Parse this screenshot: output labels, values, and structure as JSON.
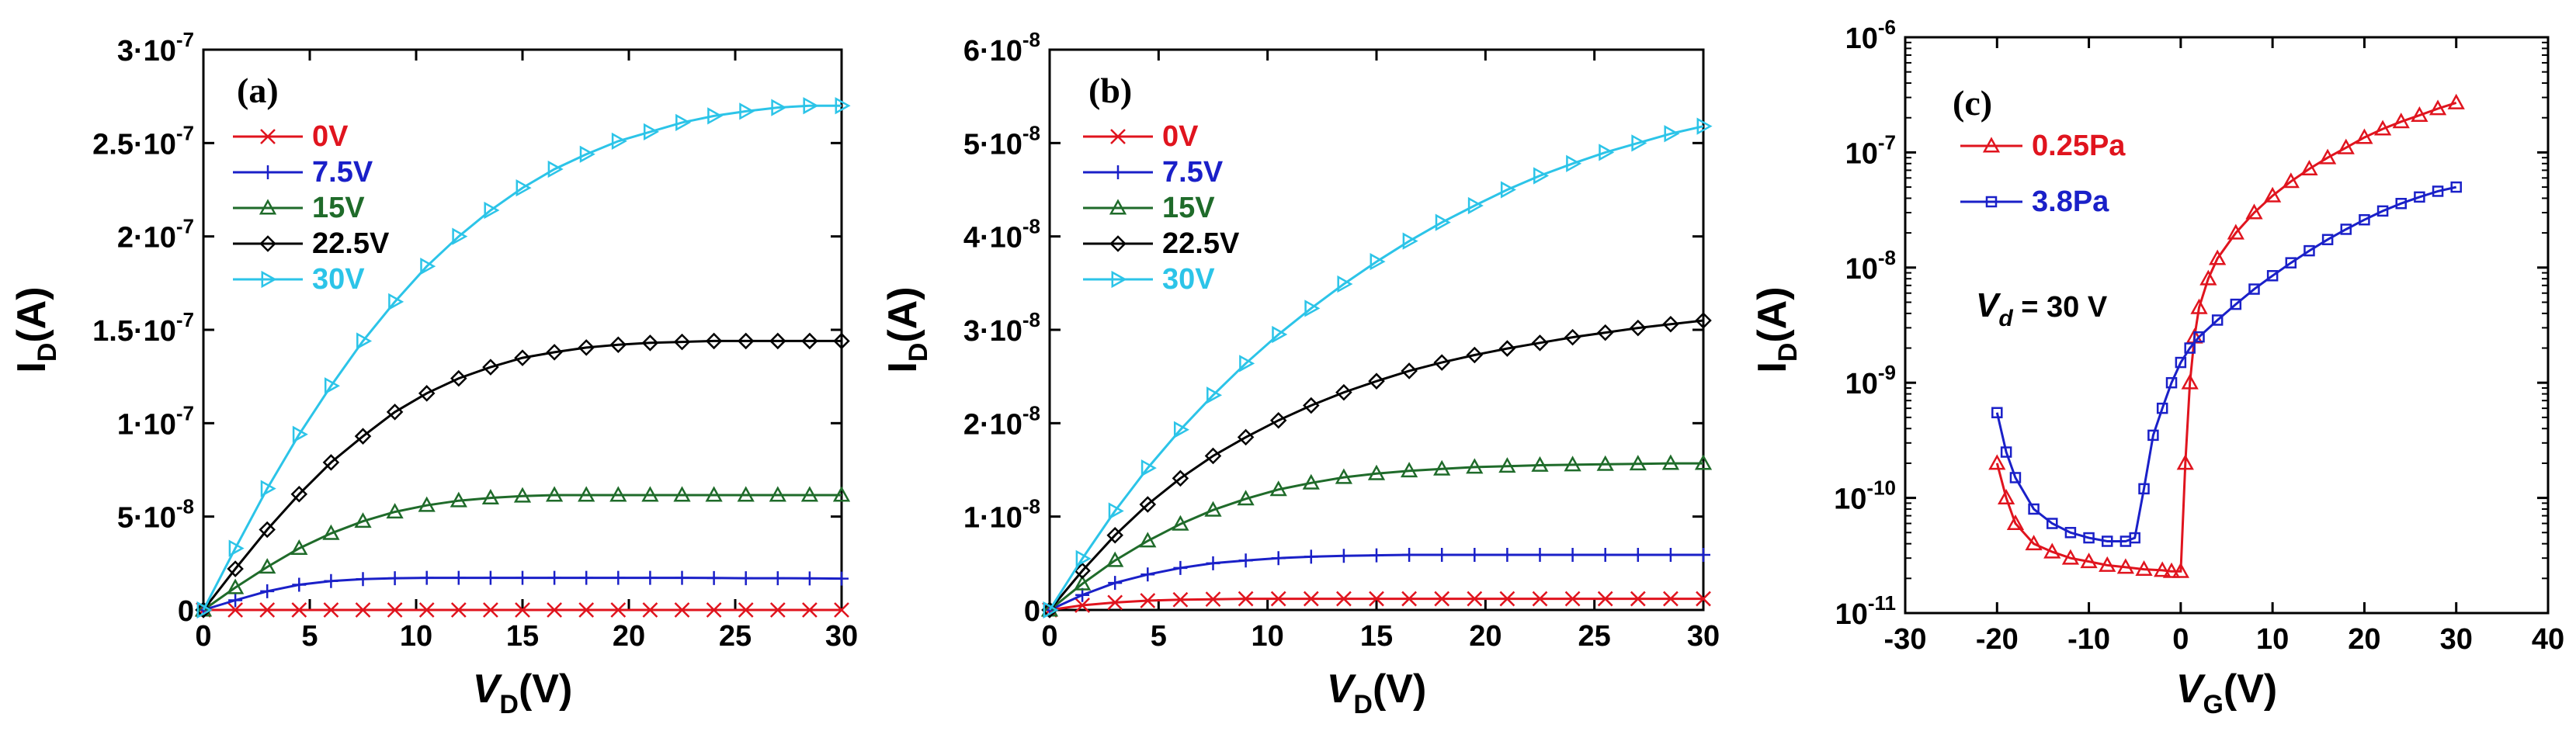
{
  "figure": {
    "panels": [
      "a",
      "b",
      "c"
    ]
  },
  "colors": {
    "0V": "#e0141e",
    "7.5V": "#1a20c8",
    "15V": "#1f6b2a",
    "22.5V": "#000000",
    "30V": "#2cc4e8",
    "0.25Pa": "#e0141e",
    "3.8Pa": "#1a20c8"
  },
  "chart_data": [
    {
      "id": "a",
      "type": "line",
      "panel_label": "(a)",
      "xlabel_main": "V",
      "xlabel_sub": "D",
      "xlabel_unit": "(V)",
      "ylabel_main": "I",
      "ylabel_sub": "D",
      "ylabel_unit": "(A)",
      "xlim": [
        0,
        30
      ],
      "ylim": [
        0,
        3e-07
      ],
      "xticks": [
        0,
        5,
        10,
        15,
        20,
        25,
        30
      ],
      "yticks": [
        {
          "mantissa": "0",
          "exp": ""
        },
        {
          "mantissa": "5·10",
          "exp": "-8"
        },
        {
          "mantissa": "1·10",
          "exp": "-7"
        },
        {
          "mantissa": "1.5·10",
          "exp": "-7"
        },
        {
          "mantissa": "2·10",
          "exp": "-7"
        },
        {
          "mantissa": "2.5·10",
          "exp": "-7"
        },
        {
          "mantissa": "3·10",
          "exp": "-7"
        }
      ],
      "legend_position": "top-left",
      "series": [
        {
          "name": "0V",
          "marker": "x",
          "x": [
            0,
            1.5,
            3,
            4.5,
            6,
            7.5,
            9,
            10.5,
            12,
            13.5,
            15,
            16.5,
            18,
            19.5,
            21,
            22.5,
            24,
            25.5,
            27,
            28.5,
            30
          ],
          "y": [
            0,
            0,
            0,
            0,
            0,
            0,
            0,
            0,
            0,
            0,
            0,
            0,
            0,
            0,
            0,
            0,
            0,
            0,
            0,
            0,
            0
          ]
        },
        {
          "name": "7.5V",
          "marker": "plus",
          "x": [
            0,
            1.5,
            3,
            4.5,
            6,
            7.5,
            9,
            10.5,
            12,
            13.5,
            15,
            16.5,
            18,
            19.5,
            21,
            22.5,
            24,
            25.5,
            27,
            28.5,
            30
          ],
          "y": [
            0,
            5.2e-09,
            1e-08,
            1.35e-08,
            1.55e-08,
            1.65e-08,
            1.7e-08,
            1.72e-08,
            1.72e-08,
            1.72e-08,
            1.72e-08,
            1.72e-08,
            1.72e-08,
            1.72e-08,
            1.72e-08,
            1.72e-08,
            1.71e-08,
            1.7e-08,
            1.7e-08,
            1.69e-08,
            1.68e-08
          ]
        },
        {
          "name": "15V",
          "marker": "triangle",
          "x": [
            0,
            1.5,
            3,
            4.5,
            6,
            7.5,
            9,
            10.5,
            12,
            13.5,
            15,
            16.5,
            18,
            19.5,
            21,
            22.5,
            24,
            25.5,
            27,
            28.5,
            30
          ],
          "y": [
            0,
            1.2e-08,
            2.3e-08,
            3.3e-08,
            4.1e-08,
            4.75e-08,
            5.25e-08,
            5.6e-08,
            5.85e-08,
            6e-08,
            6.1e-08,
            6.15e-08,
            6.15e-08,
            6.15e-08,
            6.15e-08,
            6.15e-08,
            6.15e-08,
            6.15e-08,
            6.15e-08,
            6.15e-08,
            6.15e-08
          ]
        },
        {
          "name": "22.5V",
          "marker": "diamond",
          "x": [
            0,
            1.5,
            3,
            4.5,
            6,
            7.5,
            9,
            10.5,
            12,
            13.5,
            15,
            16.5,
            18,
            19.5,
            21,
            22.5,
            24,
            25.5,
            27,
            28.5,
            30
          ],
          "y": [
            0,
            2.2e-08,
            4.3e-08,
            6.2e-08,
            7.9e-08,
            9.3e-08,
            1.06e-07,
            1.16e-07,
            1.24e-07,
            1.3e-07,
            1.35e-07,
            1.38e-07,
            1.405e-07,
            1.42e-07,
            1.43e-07,
            1.435e-07,
            1.44e-07,
            1.44e-07,
            1.44e-07,
            1.44e-07,
            1.44e-07
          ]
        },
        {
          "name": "30V",
          "marker": "triangle-right",
          "x": [
            0,
            1.5,
            3,
            4.5,
            6,
            7.5,
            9,
            10.5,
            12,
            13.5,
            15,
            16.5,
            18,
            19.5,
            21,
            22.5,
            24,
            25.5,
            27,
            28.5,
            30
          ],
          "y": [
            0,
            3.3e-08,
            6.5e-08,
            9.4e-08,
            1.2e-07,
            1.44e-07,
            1.65e-07,
            1.84e-07,
            2e-07,
            2.14e-07,
            2.26e-07,
            2.36e-07,
            2.44e-07,
            2.51e-07,
            2.56e-07,
            2.61e-07,
            2.645e-07,
            2.67e-07,
            2.69e-07,
            2.7e-07,
            2.7e-07
          ]
        }
      ]
    },
    {
      "id": "b",
      "type": "line",
      "panel_label": "(b)",
      "xlabel_main": "V",
      "xlabel_sub": "D",
      "xlabel_unit": "(V)",
      "ylabel_main": "I",
      "ylabel_sub": "D",
      "ylabel_unit": "(A)",
      "xlim": [
        0,
        30
      ],
      "ylim": [
        0,
        6e-08
      ],
      "xticks": [
        0,
        5,
        10,
        15,
        20,
        25,
        30
      ],
      "yticks": [
        {
          "mantissa": "0",
          "exp": ""
        },
        {
          "mantissa": "1·10",
          "exp": "-8"
        },
        {
          "mantissa": "2·10",
          "exp": "-8"
        },
        {
          "mantissa": "3·10",
          "exp": "-8"
        },
        {
          "mantissa": "4·10",
          "exp": "-8"
        },
        {
          "mantissa": "5·10",
          "exp": "-8"
        },
        {
          "mantissa": "6·10",
          "exp": "-8"
        }
      ],
      "legend_position": "top-left",
      "series": [
        {
          "name": "0V",
          "marker": "x",
          "x": [
            0,
            1.5,
            3,
            4.5,
            6,
            7.5,
            9,
            10.5,
            12,
            13.5,
            15,
            16.5,
            18,
            19.5,
            21,
            22.5,
            24,
            25.5,
            27,
            28.5,
            30
          ],
          "y": [
            0,
            5e-10,
            8e-10,
            1e-09,
            1.1e-09,
            1.15e-09,
            1.2e-09,
            1.2e-09,
            1.2e-09,
            1.2e-09,
            1.2e-09,
            1.2e-09,
            1.2e-09,
            1.2e-09,
            1.2e-09,
            1.2e-09,
            1.2e-09,
            1.2e-09,
            1.2e-09,
            1.2e-09,
            1.2e-09
          ]
        },
        {
          "name": "7.5V",
          "marker": "plus",
          "x": [
            0,
            1.5,
            3,
            4.5,
            6,
            7.5,
            9,
            10.5,
            12,
            13.5,
            15,
            16.5,
            18,
            19.5,
            21,
            22.5,
            24,
            25.5,
            27,
            28.5,
            30
          ],
          "y": [
            0,
            1.6e-09,
            2.9e-09,
            3.8e-09,
            4.5e-09,
            5e-09,
            5.3e-09,
            5.55e-09,
            5.7e-09,
            5.8e-09,
            5.85e-09,
            5.9e-09,
            5.9e-09,
            5.9e-09,
            5.9e-09,
            5.9e-09,
            5.9e-09,
            5.9e-09,
            5.9e-09,
            5.9e-09,
            5.9e-09
          ]
        },
        {
          "name": "15V",
          "marker": "triangle",
          "x": [
            0,
            1.5,
            3,
            4.5,
            6,
            7.5,
            9,
            10.5,
            12,
            13.5,
            15,
            16.5,
            18,
            19.5,
            21,
            22.5,
            24,
            25.5,
            27,
            28.5,
            30
          ],
          "y": [
            0,
            2.8e-09,
            5.3e-09,
            7.4e-09,
            9.2e-09,
            1.07e-08,
            1.19e-08,
            1.29e-08,
            1.36e-08,
            1.42e-08,
            1.46e-08,
            1.49e-08,
            1.51e-08,
            1.53e-08,
            1.54e-08,
            1.55e-08,
            1.555e-08,
            1.56e-08,
            1.565e-08,
            1.57e-08,
            1.57e-08
          ]
        },
        {
          "name": "22.5V",
          "marker": "diamond",
          "x": [
            0,
            1.5,
            3,
            4.5,
            6,
            7.5,
            9,
            10.5,
            12,
            13.5,
            15,
            16.5,
            18,
            19.5,
            21,
            22.5,
            24,
            25.5,
            27,
            28.5,
            30
          ],
          "y": [
            0,
            4.2e-09,
            8e-09,
            1.13e-08,
            1.41e-08,
            1.65e-08,
            1.85e-08,
            2.03e-08,
            2.19e-08,
            2.33e-08,
            2.45e-08,
            2.56e-08,
            2.65e-08,
            2.73e-08,
            2.8e-08,
            2.86e-08,
            2.92e-08,
            2.97e-08,
            3.02e-08,
            3.06e-08,
            3.1e-08
          ]
        },
        {
          "name": "30V",
          "marker": "triangle-right",
          "x": [
            0,
            1.5,
            3,
            4.5,
            6,
            7.5,
            9,
            10.5,
            12,
            13.5,
            15,
            16.5,
            18,
            19.5,
            21,
            22.5,
            24,
            25.5,
            27,
            28.5,
            30
          ],
          "y": [
            0,
            5.5e-09,
            1.06e-08,
            1.52e-08,
            1.93e-08,
            2.3e-08,
            2.64e-08,
            2.95e-08,
            3.23e-08,
            3.49e-08,
            3.73e-08,
            3.95e-08,
            4.15e-08,
            4.33e-08,
            4.5e-08,
            4.65e-08,
            4.78e-08,
            4.9e-08,
            5e-08,
            5.1e-08,
            5.18e-08
          ]
        }
      ]
    },
    {
      "id": "c",
      "type": "line",
      "scale": "log",
      "panel_label": "(c)",
      "xlabel_main": "V",
      "xlabel_sub": "G",
      "xlabel_unit": "(V)",
      "ylabel_main": "I",
      "ylabel_sub": "D",
      "ylabel_unit": "(A)",
      "xlim": [
        -30,
        40
      ],
      "ylim_exp": [
        -11,
        -6
      ],
      "xticks": [
        -30,
        -20,
        -10,
        0,
        10,
        20,
        30,
        40
      ],
      "yticks": [
        {
          "mantissa": "10",
          "exp": "-11",
          "pow": -11
        },
        {
          "mantissa": "10",
          "exp": "-10",
          "pow": -10
        },
        {
          "mantissa": "10",
          "exp": "-9",
          "pow": -9
        },
        {
          "mantissa": "10",
          "exp": "-8",
          "pow": -8
        },
        {
          "mantissa": "10",
          "exp": "-7",
          "pow": -7
        },
        {
          "mantissa": "10",
          "exp": "-6",
          "pow": -6
        }
      ],
      "annotation": {
        "main": "V",
        "sub": "d",
        "rest": " = 30 V"
      },
      "legend_position": "top-left",
      "series": [
        {
          "name": "0.25Pa",
          "marker": "triangle",
          "x": [
            -20,
            -19,
            -18,
            -16,
            -14,
            -12,
            -10,
            -8,
            -6,
            -4,
            -2,
            -1,
            0,
            0.5,
            1,
            1.5,
            2,
            3,
            4,
            6,
            8,
            10,
            12,
            14,
            16,
            18,
            20,
            22,
            24,
            26,
            28,
            30
          ],
          "y": [
            2e-10,
            1e-10,
            6e-11,
            4e-11,
            3.4e-11,
            3e-11,
            2.8e-11,
            2.6e-11,
            2.5e-11,
            2.4e-11,
            2.35e-11,
            2.3e-11,
            2.3e-11,
            2e-10,
            1e-09,
            2.5e-09,
            4.5e-09,
            8e-09,
            1.2e-08,
            2e-08,
            3e-08,
            4.2e-08,
            5.6e-08,
            7.2e-08,
            9e-08,
            1.1e-07,
            1.35e-07,
            1.6e-07,
            1.85e-07,
            2.1e-07,
            2.4e-07,
            2.7e-07
          ]
        },
        {
          "name": "3.8Pa",
          "marker": "square",
          "x": [
            -20,
            -19,
            -18,
            -16,
            -14,
            -12,
            -10,
            -8,
            -6,
            -5,
            -4,
            -3,
            -2,
            -1,
            0,
            1,
            2,
            4,
            6,
            8,
            10,
            12,
            14,
            16,
            18,
            20,
            22,
            24,
            26,
            28,
            30
          ],
          "y": [
            5.5e-10,
            2.5e-10,
            1.5e-10,
            8e-11,
            6e-11,
            5e-11,
            4.5e-11,
            4.2e-11,
            4.2e-11,
            4.5e-11,
            1.2e-10,
            3.5e-10,
            6e-10,
            1e-09,
            1.5e-09,
            2e-09,
            2.5e-09,
            3.5e-09,
            4.8e-09,
            6.5e-09,
            8.5e-09,
            1.1e-08,
            1.4e-08,
            1.75e-08,
            2.15e-08,
            2.6e-08,
            3.1e-08,
            3.6e-08,
            4.1e-08,
            4.6e-08,
            5e-08
          ]
        }
      ]
    }
  ]
}
